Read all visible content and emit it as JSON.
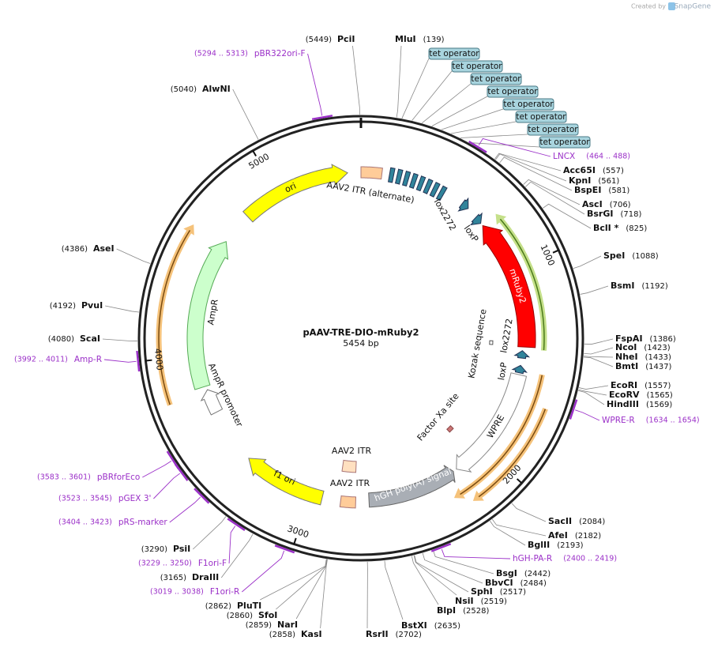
{
  "header": {
    "credit": "Created by",
    "brand": "SnapGene"
  },
  "plasmid": {
    "name": "pAAV-TRE-DIO-mRuby2",
    "size": "5454 bp"
  },
  "ruler": [
    1000,
    2000,
    3000,
    4000,
    5000
  ],
  "sites": [
    {
      "name": "PciI",
      "position": "(5449)"
    },
    {
      "name": "MluI",
      "position": "(139)"
    },
    {
      "name": "Acc65I",
      "position": "(557)"
    },
    {
      "name": "KpnI",
      "position": "(561)"
    },
    {
      "name": "BspEI",
      "position": "(581)"
    },
    {
      "name": "AscI",
      "position": "(706)"
    },
    {
      "name": "BsrGI",
      "position": "(718)"
    },
    {
      "name": "BclI *",
      "position": "(825)"
    },
    {
      "name": "SpeI",
      "position": "(1088)"
    },
    {
      "name": "BsmI",
      "position": "(1192)"
    },
    {
      "name": "FspAI",
      "position": "(1386)"
    },
    {
      "name": "NcoI",
      "position": "(1423)"
    },
    {
      "name": "NheI",
      "position": "(1433)"
    },
    {
      "name": "BmtI",
      "position": "(1437)"
    },
    {
      "name": "EcoRI",
      "position": "(1557)"
    },
    {
      "name": "EcoRV",
      "position": "(1565)"
    },
    {
      "name": "HindIII",
      "position": "(1569)"
    },
    {
      "name": "SacII",
      "position": "(2084)"
    },
    {
      "name": "AfeI",
      "position": "(2182)"
    },
    {
      "name": "BglII",
      "position": "(2193)"
    },
    {
      "name": "BsgI",
      "position": "(2442)"
    },
    {
      "name": "BbvCI",
      "position": "(2484)"
    },
    {
      "name": "SphI",
      "position": "(2517)"
    },
    {
      "name": "NsiI",
      "position": "(2519)"
    },
    {
      "name": "BlpI",
      "position": "(2528)"
    },
    {
      "name": "BstXI",
      "position": "(2635)"
    },
    {
      "name": "RsrII",
      "position": "(2702)"
    },
    {
      "name": "KasI",
      "position": "(2858)"
    },
    {
      "name": "NarI",
      "position": "(2859)"
    },
    {
      "name": "SfoI",
      "position": "(2860)"
    },
    {
      "name": "PluTI",
      "position": "(2862)"
    },
    {
      "name": "DraIII",
      "position": "(3165)"
    },
    {
      "name": "PsiI",
      "position": "(3290)"
    },
    {
      "name": "ScaI",
      "position": "(4080)"
    },
    {
      "name": "PvuI",
      "position": "(4192)"
    },
    {
      "name": "AseI",
      "position": "(4386)"
    },
    {
      "name": "AlwNI",
      "position": "(5040)"
    }
  ],
  "primers": [
    {
      "name": "pBR322ori-F",
      "range": "(5294 .. 5313)"
    },
    {
      "name": "LNCX",
      "range": "(464 .. 488)"
    },
    {
      "name": "WPRE-R",
      "range": "(1634 .. 1654)"
    },
    {
      "name": "hGH-PA-R",
      "range": "(2400 .. 2419)"
    },
    {
      "name": "F1ori-R",
      "range": "(3019 .. 3038)"
    },
    {
      "name": "F1ori-F",
      "range": "(3229 .. 3250)"
    },
    {
      "name": "pRS-marker",
      "range": "(3404 .. 3423)"
    },
    {
      "name": "pGEX 3'",
      "range": "(3523 .. 3545)"
    },
    {
      "name": "pBRforEco",
      "range": "(3583 .. 3601)"
    },
    {
      "name": "Amp-R",
      "range": "(3992 .. 4011)"
    }
  ],
  "tet_operators": [
    "tet operator",
    "tet operator",
    "tet operator",
    "tet operator",
    "tet operator",
    "tet operator",
    "tet operator",
    "tet operator"
  ],
  "features": [
    {
      "label": "ori"
    },
    {
      "label": "AAV2 ITR (alternate)"
    },
    {
      "label": "lox2272"
    },
    {
      "label": "loxP"
    },
    {
      "label": "mRuby2"
    },
    {
      "label": "Kozak sequence"
    },
    {
      "label": "lox2272"
    },
    {
      "label": "loxP"
    },
    {
      "label": "WPRE"
    },
    {
      "label": "Factor Xa site"
    },
    {
      "label": "hGH poly(A) signal"
    },
    {
      "label": "AAV2 ITR"
    },
    {
      "label": "AAV2 ITR"
    },
    {
      "label": "f1 ori"
    },
    {
      "label": "AmpR"
    },
    {
      "label": "AmpR promoter"
    }
  ]
}
